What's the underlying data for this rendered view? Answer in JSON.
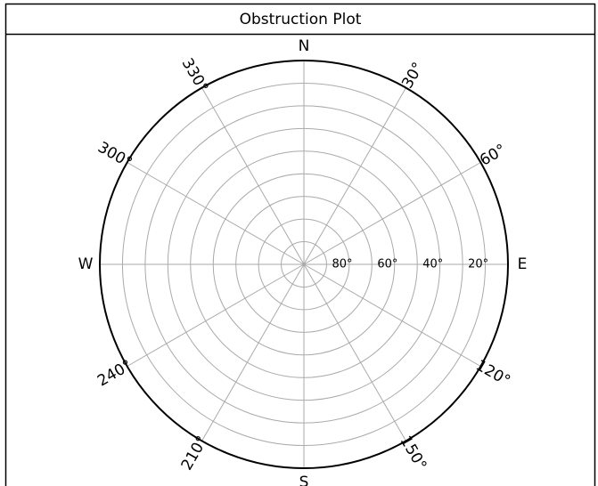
{
  "chart_data": {
    "type": "polar",
    "title": "Obstruction Plot",
    "rlim": [
      90,
      0
    ],
    "rticks": [
      {
        "value": 80,
        "label": "80°"
      },
      {
        "value": 60,
        "label": "60°"
      },
      {
        "value": 40,
        "label": "40°"
      },
      {
        "value": 20,
        "label": "20°"
      }
    ],
    "rminor": [
      70,
      50,
      30,
      10
    ],
    "thetaticks": [
      {
        "value": 0,
        "label": "N"
      },
      {
        "value": 30,
        "label": "30°"
      },
      {
        "value": 60,
        "label": "60°"
      },
      {
        "value": 90,
        "label": "E"
      },
      {
        "value": 120,
        "label": "120°"
      },
      {
        "value": 150,
        "label": "150°"
      },
      {
        "value": 180,
        "label": "S"
      },
      {
        "value": 210,
        "label": "210°"
      },
      {
        "value": 240,
        "label": "240°"
      },
      {
        "value": 270,
        "label": "W"
      },
      {
        "value": 300,
        "label": "300°"
      },
      {
        "value": 330,
        "label": "330°"
      }
    ],
    "grid": true
  }
}
